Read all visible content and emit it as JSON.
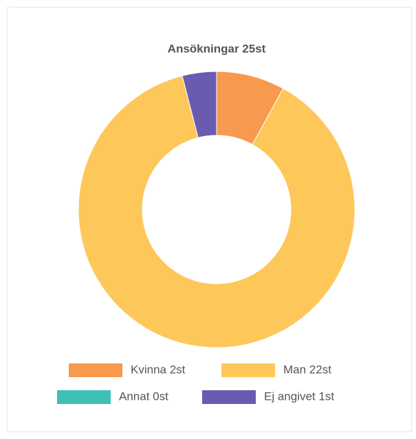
{
  "chart_data": {
    "type": "doughnut",
    "title": "Ansökningar 25st",
    "categories": [
      "Kvinna 2st",
      "Man 22st",
      "Annat 0st",
      "Ej angivet 1st"
    ],
    "values": [
      2,
      22,
      0,
      1
    ],
    "colors": [
      "#f79a4e",
      "#fdc75a",
      "#3fbfb5",
      "#6b5bb0"
    ]
  }
}
